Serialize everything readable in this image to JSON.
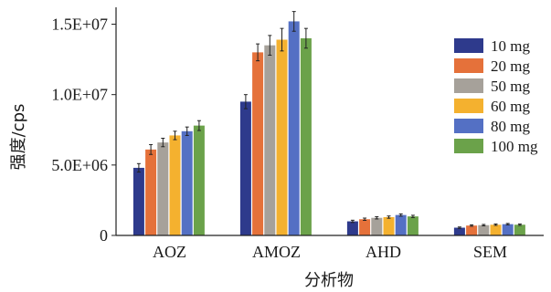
{
  "chart_data": {
    "type": "bar",
    "ylabel": "强度/cps",
    "xlabel": "分析物",
    "categories": [
      "AOZ",
      "AMOZ",
      "AHD",
      "SEM"
    ],
    "y_ticks": [
      "0",
      "5.0E+06",
      "1.0E+07",
      "1.5E+07"
    ],
    "y_tick_values": [
      0,
      5000000,
      10000000,
      15000000
    ],
    "ylim": [
      0,
      16200000
    ],
    "legend_position": "top-right",
    "grid": false,
    "series": [
      {
        "name": "10 mg",
        "color": "#2E3A8C",
        "values": [
          4800000,
          9500000,
          1000000,
          550000
        ],
        "errors": [
          300000,
          500000,
          80000,
          50000
        ]
      },
      {
        "name": "20 mg",
        "color": "#E5713A",
        "values": [
          6100000,
          13000000,
          1150000,
          700000
        ],
        "errors": [
          350000,
          600000,
          80000,
          50000
        ]
      },
      {
        "name": "50 mg",
        "color": "#A6A19A",
        "values": [
          6600000,
          13500000,
          1250000,
          730000
        ],
        "errors": [
          300000,
          700000,
          80000,
          50000
        ]
      },
      {
        "name": "60 mg",
        "color": "#F4B12F",
        "values": [
          7100000,
          13900000,
          1300000,
          760000
        ],
        "errors": [
          300000,
          800000,
          80000,
          50000
        ]
      },
      {
        "name": "80 mg",
        "color": "#5470C4",
        "values": [
          7400000,
          15200000,
          1450000,
          800000
        ],
        "errors": [
          300000,
          700000,
          80000,
          50000
        ]
      },
      {
        "name": "100 mg",
        "color": "#6BA24A",
        "values": [
          7800000,
          14000000,
          1350000,
          760000
        ],
        "errors": [
          350000,
          700000,
          80000,
          50000
        ]
      }
    ]
  }
}
